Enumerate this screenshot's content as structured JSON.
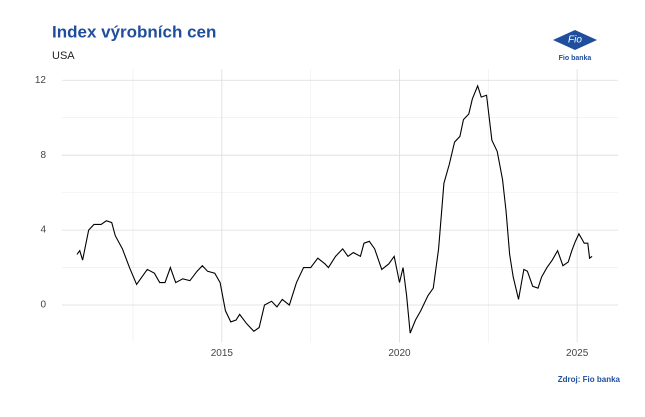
{
  "chart_data": {
    "type": "line",
    "title": "Index výrobních cen",
    "subtitle": "USA",
    "source": "Zdroj: Fio banka",
    "logo_mark": "Fio",
    "logo_text": "Fio banka",
    "x": [
      2010.92,
      2011.0,
      2011.08,
      2011.25,
      2011.4,
      2011.6,
      2011.75,
      2011.9,
      2012.0,
      2012.2,
      2012.4,
      2012.6,
      2012.75,
      2012.9,
      2013.1,
      2013.25,
      2013.4,
      2013.55,
      2013.7,
      2013.9,
      2014.1,
      2014.3,
      2014.45,
      2014.6,
      2014.8,
      2014.95,
      2015.1,
      2015.25,
      2015.4,
      2015.5,
      2015.7,
      2015.9,
      2016.05,
      2016.2,
      2016.4,
      2016.55,
      2016.7,
      2016.9,
      2017.1,
      2017.3,
      2017.5,
      2017.7,
      2017.9,
      2018.0,
      2018.2,
      2018.4,
      2018.55,
      2018.7,
      2018.9,
      2019.0,
      2019.15,
      2019.3,
      2019.5,
      2019.7,
      2019.85,
      2020.0,
      2020.1,
      2020.2,
      2020.3,
      2020.45,
      2020.6,
      2020.8,
      2020.95,
      2021.1,
      2021.25,
      2021.4,
      2021.55,
      2021.7,
      2021.8,
      2021.95,
      2022.05,
      2022.2,
      2022.3,
      2022.45,
      2022.6,
      2022.75,
      2022.9,
      2023.0,
      2023.1,
      2023.2,
      2023.35,
      2023.5,
      2023.6,
      2023.75,
      2023.9,
      2024.0,
      2024.15,
      2024.3,
      2024.45,
      2024.6,
      2024.75,
      2024.85,
      2024.95,
      2025.05,
      2025.2,
      2025.3,
      2025.35,
      2025.42
    ],
    "series": [
      {
        "name": "USA",
        "color": "#000000",
        "values": [
          2.7,
          2.9,
          2.4,
          4.0,
          4.3,
          4.3,
          4.5,
          4.4,
          3.7,
          3.0,
          2.0,
          1.1,
          1.5,
          1.9,
          1.7,
          1.2,
          1.2,
          2.0,
          1.2,
          1.4,
          1.3,
          1.8,
          2.1,
          1.8,
          1.7,
          1.2,
          -0.3,
          -0.9,
          -0.8,
          -0.5,
          -1.0,
          -1.4,
          -1.2,
          0.0,
          0.2,
          -0.1,
          0.3,
          0.0,
          1.2,
          2.0,
          2.0,
          2.5,
          2.2,
          2.0,
          2.6,
          3.0,
          2.6,
          2.8,
          2.6,
          3.3,
          3.4,
          3.0,
          1.9,
          2.2,
          2.6,
          1.2,
          2.0,
          0.5,
          -1.5,
          -0.8,
          -0.3,
          0.5,
          0.9,
          3.0,
          6.5,
          7.5,
          8.7,
          9.0,
          9.9,
          10.2,
          11.0,
          11.7,
          11.1,
          11.2,
          8.8,
          8.2,
          6.7,
          5.0,
          2.7,
          1.5,
          0.3,
          1.9,
          1.8,
          1.0,
          0.9,
          1.5,
          2.0,
          2.4,
          2.9,
          2.1,
          2.3,
          2.9,
          3.4,
          3.8,
          3.3,
          3.3,
          2.5,
          2.6
        ]
      }
    ],
    "xlim": [
      2010.5,
      2026.15
    ],
    "xticks": [
      2015,
      2020,
      2025
    ],
    "x_minor_grid": [
      2012.5,
      2017.5,
      2022.5
    ],
    "ylim": [
      -2,
      12.6
    ],
    "yticks": [
      0,
      4,
      8,
      12
    ],
    "y_minor_grid": [
      2,
      6,
      10
    ],
    "grid": true
  }
}
